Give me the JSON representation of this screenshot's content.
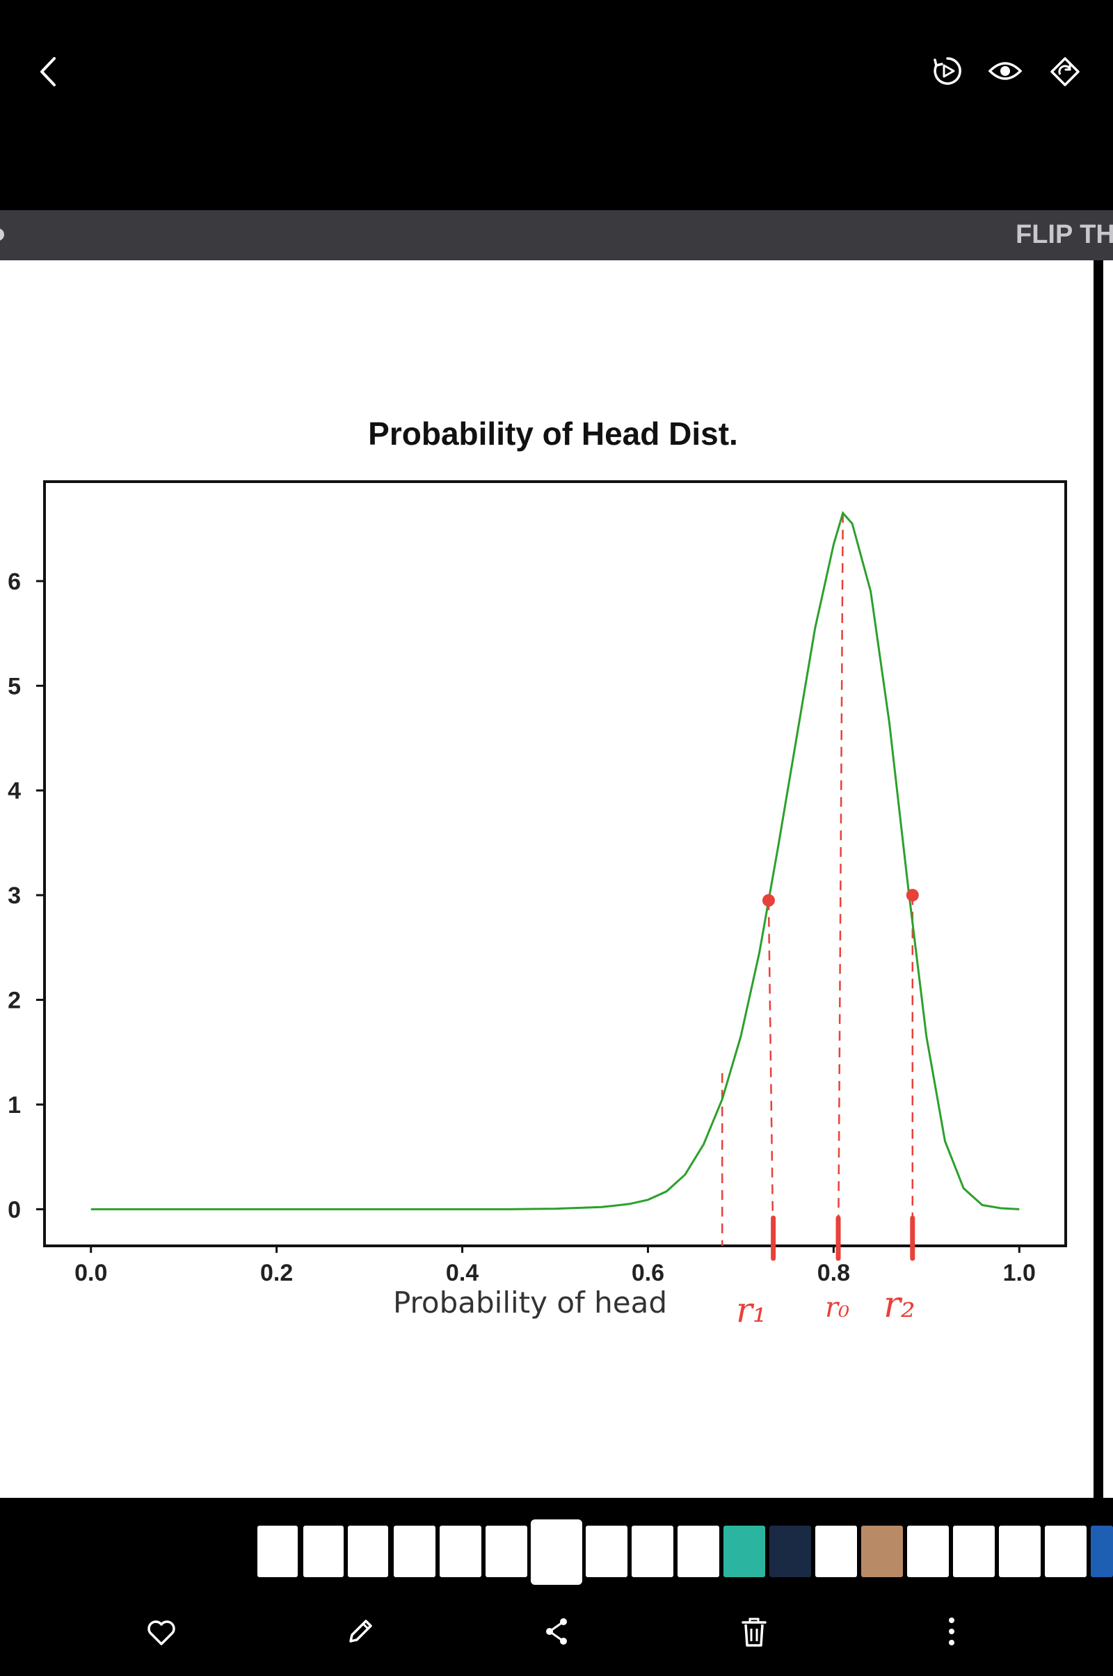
{
  "app": {
    "banner_text": "FLIP TH"
  },
  "icons": {
    "back": "back-arrow-icon",
    "video": "video-play-icon",
    "view": "eye-icon",
    "rotate": "rotate-icon",
    "favorite": "heart-icon",
    "edit": "pencil-icon",
    "share": "share-icon",
    "delete": "trash-icon",
    "more": "more-vertical-icon"
  },
  "colors": {
    "curve": "#2ca02c",
    "annotation": "#e8413a",
    "banner": "#3b3b3f"
  },
  "chart_data": {
    "type": "line",
    "title": "Probability of Head Dist.",
    "xlabel": "Probability of head",
    "ylabel": "",
    "xlim": [
      -0.05,
      1.05
    ],
    "ylim": [
      -0.35,
      6.95
    ],
    "xticks": [
      "0.0",
      "0.2",
      "0.4",
      "0.6",
      "0.8",
      "1.0"
    ],
    "yticks": [
      "0",
      "1",
      "2",
      "3",
      "4",
      "5",
      "6"
    ],
    "grid": false,
    "series": [
      {
        "x": [
          0.0,
          0.05,
          0.1,
          0.15,
          0.2,
          0.25,
          0.3,
          0.35,
          0.4,
          0.45,
          0.5,
          0.55,
          0.58,
          0.6,
          0.62,
          0.64,
          0.66,
          0.68,
          0.7,
          0.72,
          0.74,
          0.76,
          0.78,
          0.8,
          0.81,
          0.82,
          0.84,
          0.86,
          0.88,
          0.9,
          0.92,
          0.94,
          0.96,
          0.98,
          1.0
        ],
        "y": [
          0,
          0,
          0,
          0,
          0,
          0,
          0,
          0,
          0,
          0,
          0.005,
          0.02,
          0.05,
          0.09,
          0.17,
          0.33,
          0.62,
          1.05,
          1.65,
          2.45,
          3.45,
          4.5,
          5.55,
          6.35,
          6.65,
          6.55,
          5.9,
          4.65,
          3.1,
          1.65,
          0.65,
          0.2,
          0.04,
          0.01,
          0.0
        ]
      }
    ],
    "annotations": {
      "labels": [
        "r₁",
        "r₀",
        "r₂"
      ],
      "markers": [
        {
          "x": 0.73,
          "y": 2.95
        },
        {
          "x": 0.885,
          "y": 3.0
        }
      ],
      "dashed_lines": [
        {
          "x0": 0.68,
          "y0": 1.3,
          "x1": 0.68,
          "y1": -0.35
        },
        {
          "x0": 0.73,
          "y0": 2.95,
          "x1": 0.735,
          "y1": -0.45
        },
        {
          "x0": 0.81,
          "y0": 6.65,
          "x1": 0.805,
          "y1": -0.45
        },
        {
          "x0": 0.885,
          "y0": 3.0,
          "x1": 0.885,
          "y1": -0.4
        }
      ],
      "ticks_x": [
        0.735,
        0.805,
        0.885
      ]
    }
  }
}
